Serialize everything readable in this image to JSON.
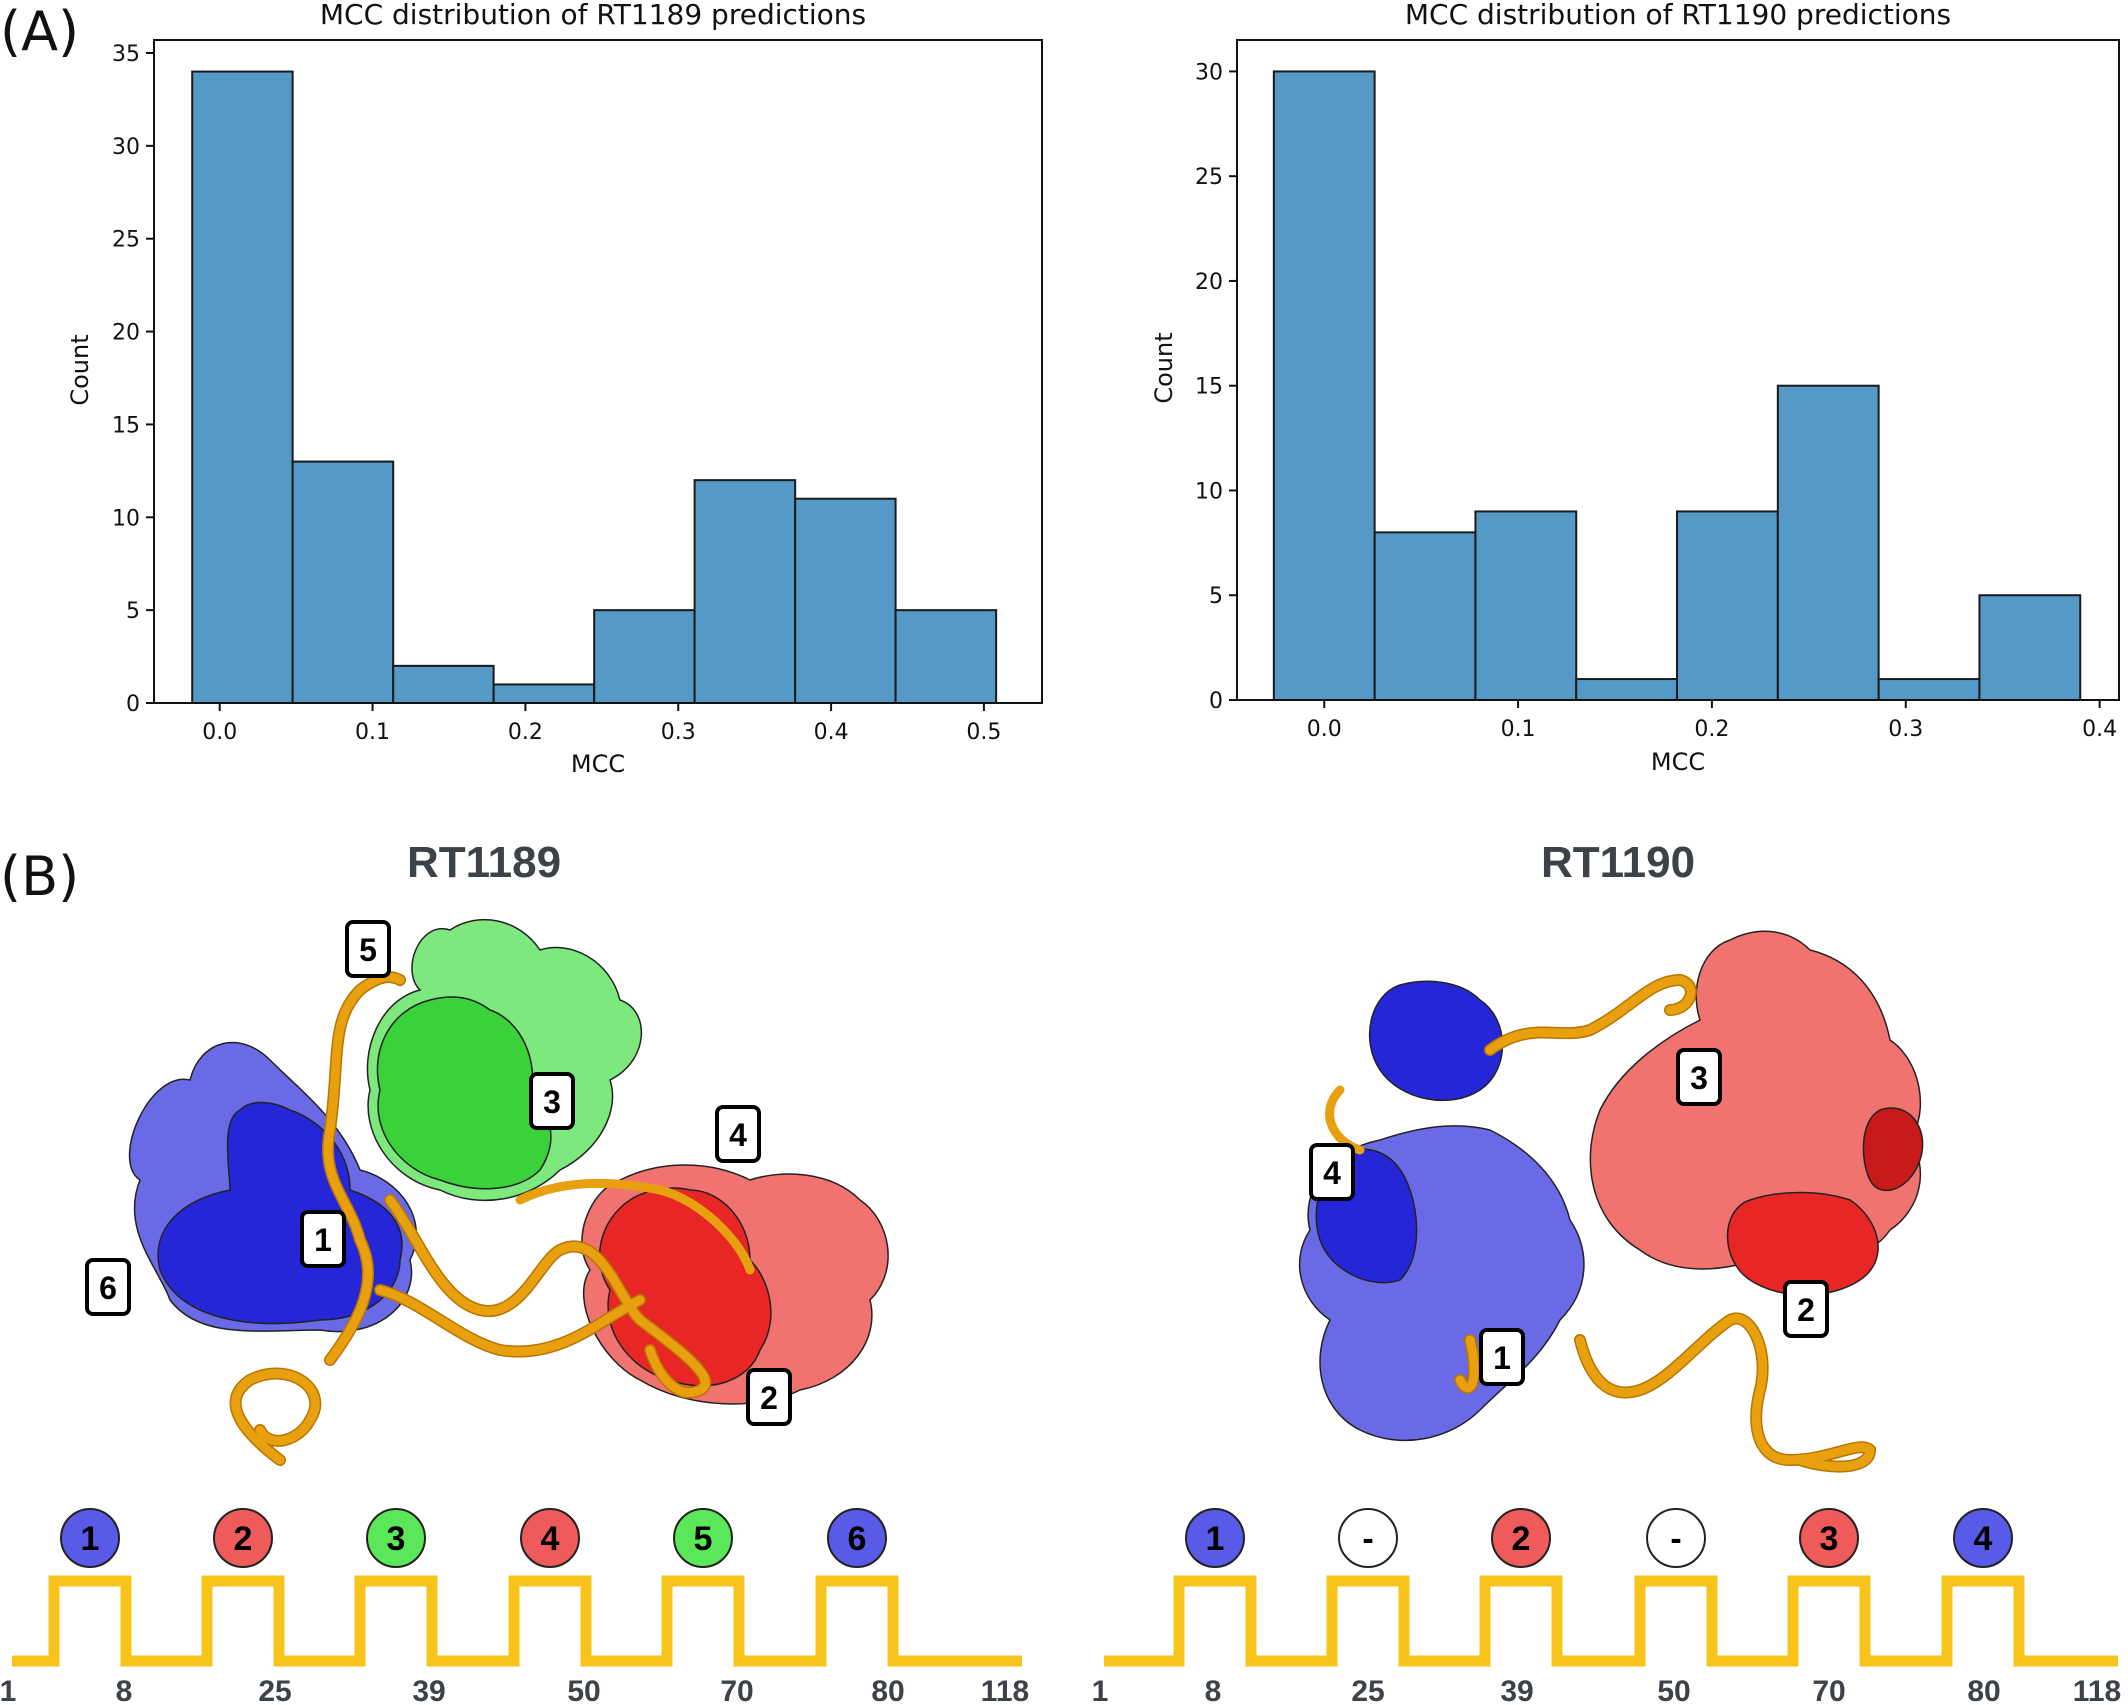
{
  "panel_labels": {
    "a": "(A)",
    "b": "(B)"
  },
  "colors": {
    "bar_fill": "#5599c7",
    "bar_edge": "#1a1a1a",
    "ribbon": "#e8a00f",
    "ribbon_dark": "#b87500",
    "blue_dark": "#2626d9",
    "blue_light": "#6a6ae6",
    "green_dark": "#3ad13a",
    "green_light": "#7de87d",
    "red_dark": "#e82626",
    "red_light": "#f07370",
    "topology": "#f7c31a",
    "circle_blue": "#5a5ae8",
    "circle_red": "#ef5a5a",
    "circle_green": "#5ae85a",
    "circle_empty": "#ffffff"
  },
  "chart_data": [
    {
      "type": "bar",
      "title": "MCC distribution of RT1189 predictions",
      "xlabel": "MCC",
      "ylabel": "Count",
      "bin_edges": [
        -0.018,
        0.0477,
        0.1135,
        0.1792,
        0.245,
        0.3107,
        0.3765,
        0.4422,
        0.508
      ],
      "values": [
        34,
        13,
        2,
        1,
        5,
        12,
        11,
        5
      ],
      "xlim": [
        -0.043,
        0.538
      ],
      "ylim": [
        0,
        35.7
      ],
      "xticks": [
        0.0,
        0.1,
        0.2,
        0.3,
        0.4,
        0.5
      ],
      "xtick_labels": [
        "0.0",
        "0.1",
        "0.2",
        "0.3",
        "0.4",
        "0.5"
      ],
      "yticks": [
        0,
        5,
        10,
        15,
        20,
        25,
        30,
        35
      ],
      "ytick_labels": [
        "0",
        "5",
        "10",
        "15",
        "20",
        "25",
        "30",
        "35"
      ],
      "grid": false
    },
    {
      "type": "bar",
      "title": "MCC distribution of RT1190 predictions",
      "xlabel": "MCC",
      "ylabel": "Count",
      "bin_edges": [
        -0.026,
        0.026,
        0.078,
        0.13,
        0.182,
        0.234,
        0.286,
        0.338,
        0.39
      ],
      "values": [
        30,
        8,
        9,
        1,
        9,
        15,
        1,
        5
      ],
      "xlim": [
        -0.045,
        0.41
      ],
      "ylim": [
        0,
        31.5
      ],
      "xticks": [
        0.0,
        0.1,
        0.2,
        0.3,
        0.4
      ],
      "xtick_labels": [
        "0.0",
        "0.1",
        "0.2",
        "0.3",
        "0.4"
      ],
      "yticks": [
        0,
        5,
        10,
        15,
        20,
        25,
        30
      ],
      "ytick_labels": [
        "0",
        "5",
        "10",
        "15",
        "20",
        "25",
        "30"
      ],
      "grid": false
    }
  ],
  "structures": [
    {
      "title": "RT1189",
      "box_labels": [
        "5",
        "3",
        "4",
        "1",
        "6",
        "2"
      ],
      "domains": [
        {
          "label": "1",
          "color": "blue"
        },
        {
          "label": "2",
          "color": "red"
        },
        {
          "label": "3",
          "color": "green"
        },
        {
          "label": "4",
          "color": "red"
        },
        {
          "label": "5",
          "color": "green"
        },
        {
          "label": "6",
          "color": "blue"
        }
      ],
      "positions": [
        "1",
        "8",
        "25",
        "39",
        "50",
        "70",
        "80",
        "118"
      ]
    },
    {
      "title": "RT1190",
      "box_labels": [
        "3",
        "4",
        "2",
        "1"
      ],
      "domains": [
        {
          "label": "1",
          "color": "blue"
        },
        {
          "label": "-",
          "color": "empty"
        },
        {
          "label": "2",
          "color": "red"
        },
        {
          "label": "-",
          "color": "empty"
        },
        {
          "label": "3",
          "color": "red"
        },
        {
          "label": "4",
          "color": "blue"
        }
      ],
      "positions": [
        "1",
        "8",
        "25",
        "39",
        "50",
        "70",
        "80",
        "118"
      ]
    }
  ]
}
